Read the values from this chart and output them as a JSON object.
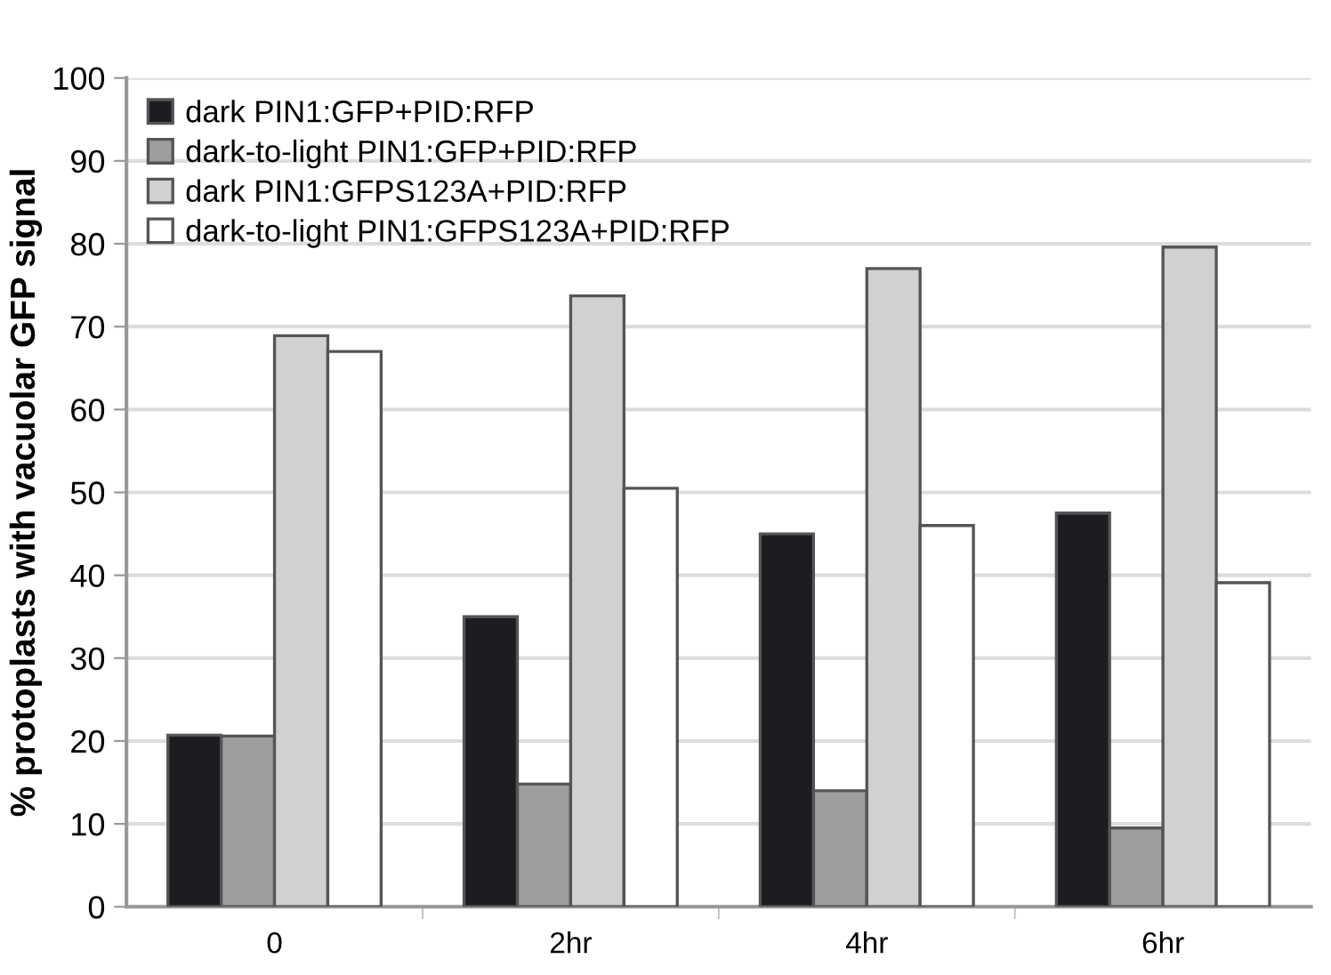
{
  "chart_data": {
    "type": "bar",
    "ylabel": "% protoplasts with vacuolar GFP signal",
    "categories": [
      "0",
      "2hr",
      "4hr",
      "6hr"
    ],
    "series": [
      {
        "name": "dark PIN1:GFP+PID:RFP",
        "color": "#1e1c20",
        "values": [
          20.7,
          35.0,
          45.0,
          47.5
        ]
      },
      {
        "name": "dark-to-light PIN1:GFP+PID:RFP",
        "color": "#9d9ea0",
        "values": [
          20.6,
          14.8,
          14.0,
          9.5
        ]
      },
      {
        "name": "dark PIN1:GFPS123A+PID:RFP",
        "color": "#d0d1d3",
        "values": [
          68.9,
          73.7,
          77.0,
          79.6
        ]
      },
      {
        "name": "dark-to-light PIN1:GFPS123A+PID:RFP",
        "color": "#ffffff",
        "values": [
          67.0,
          50.5,
          46.0,
          39.1
        ]
      }
    ],
    "ylim": [
      0,
      100
    ],
    "yticks": [
      0,
      10,
      20,
      30,
      40,
      50,
      60,
      70,
      80,
      90,
      100
    ],
    "grid": "y",
    "legend": "top left"
  }
}
